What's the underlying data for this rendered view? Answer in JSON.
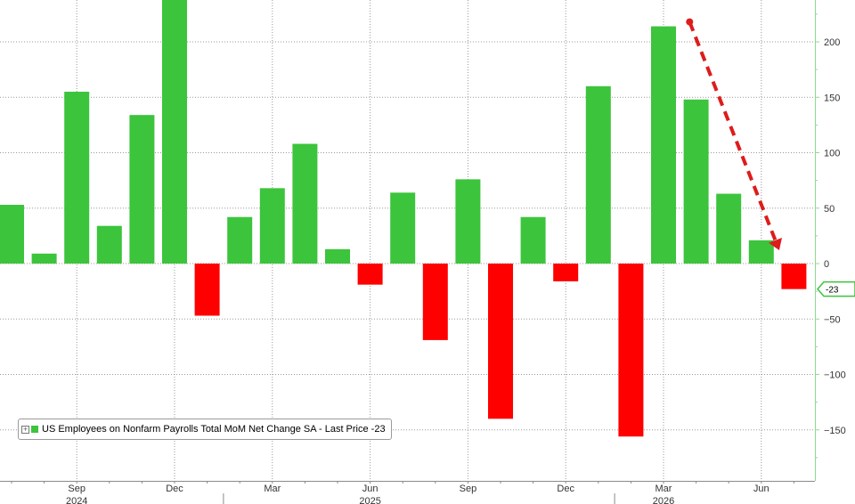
{
  "chart_data": {
    "type": "bar",
    "legend": {
      "toggle_icon": "plus-icon",
      "text": "US Employees on Nonfarm Payrolls Total MoM Net Change SA - Last Price -23"
    },
    "last_price_label": "-23",
    "annotation": "red-dashed-downward-arrow",
    "x": [
      "2024-07",
      "2024-08",
      "2024-09",
      "2024-10",
      "2024-11",
      "2024-12",
      "2025-01",
      "2025-02",
      "2025-03",
      "2025-04",
      "2025-05",
      "2025-06",
      "2025-07",
      "2025-08",
      "2025-09",
      "2025-10",
      "2025-11",
      "2025-12",
      "2026-01",
      "2026-02",
      "2026-03",
      "2026-04",
      "2026-05",
      "2026-06",
      "2026-07"
    ],
    "values": [
      53,
      9,
      155,
      34,
      134,
      240,
      -47,
      42,
      68,
      108,
      13,
      -19,
      64,
      -69,
      76,
      -140,
      42,
      -16,
      160,
      -156,
      214,
      148,
      63,
      21,
      -23
    ],
    "ylim": [
      -200,
      240
    ],
    "y_ticks": [
      200,
      150,
      100,
      50,
      0,
      -50,
      -100,
      -150
    ],
    "y_tick_labels": [
      "200",
      "150",
      "100",
      "50",
      "0",
      "−50",
      "−100",
      "−150"
    ],
    "x_ticks": [
      {
        "label": "Sep",
        "index": 2
      },
      {
        "label": "Dec",
        "index": 5
      },
      {
        "label": "Mar",
        "index": 8
      },
      {
        "label": "Jun",
        "index": 11
      },
      {
        "label": "Sep",
        "index": 14
      },
      {
        "label": "Dec",
        "index": 17
      },
      {
        "label": "Mar",
        "index": 20
      },
      {
        "label": "Jun",
        "index": 23
      }
    ],
    "year_labels": [
      {
        "label": "2024",
        "index": 2
      },
      {
        "label": "2025",
        "index": 11
      },
      {
        "label": "2026",
        "index": 20
      }
    ],
    "colors": {
      "positive": "#3cc43c",
      "negative": "#ff0000",
      "axis": "#8fd88f",
      "grid": "#9a9a9a",
      "arrow": "#dd1c1c",
      "last_price_tag": "#3cc43c"
    }
  }
}
